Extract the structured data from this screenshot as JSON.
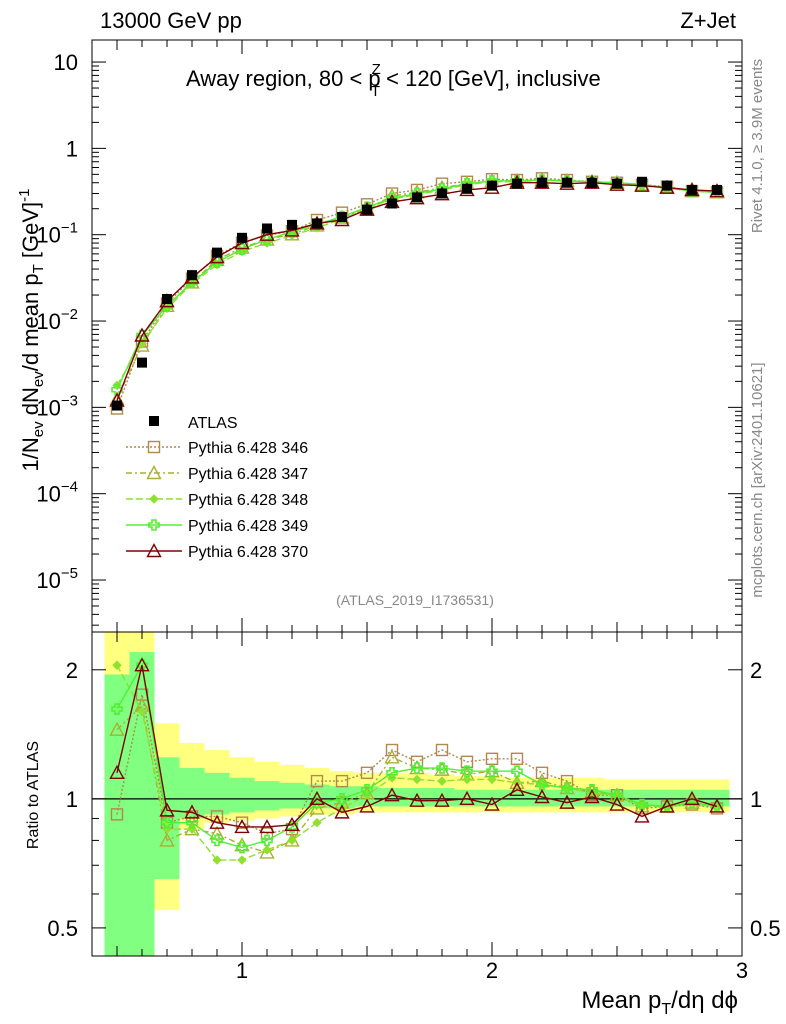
{
  "header": {
    "left": "13000 GeV pp",
    "right": "Z+Jet"
  },
  "side": {
    "rivet": "Rivet 4.1.0, ≥ 3.9M events",
    "mcplots": "mcplots.cern.ch [arXiv:2401.10621]"
  },
  "colors": {
    "s346": "#b08850",
    "s347": "#a8b030",
    "s348": "#90e030",
    "s349": "#50f030",
    "s370": "#800000",
    "band_y": "#ffff80",
    "band_g": "#80ff80"
  },
  "chart_data": [
    {
      "type": "line",
      "title": "Away region, 80 < pT^Z < 120 [GeV], inclusive",
      "title_parts": {
        "a": "Away region, 80 < p",
        "sup": "Z",
        "sub": "T",
        "b": " < 120 [GeV], inclusive"
      },
      "ylabel": "1/N_ev dN_ev/d mean p_T [GeV]^-1",
      "ylabel_parts": {
        "a": "1/N",
        "ev1": "ev",
        "b": " dN",
        "ev2": "ev",
        "c": "/d mean p",
        "T": "T",
        "d": " [GeV]",
        "e": "-1"
      },
      "yscale": "log",
      "ylim": [
        2.5e-06,
        18
      ],
      "xlim": [
        0.4,
        3.0
      ],
      "yticks": [
        {
          "v": 10,
          "m": "10",
          "e": ""
        },
        {
          "v": 1,
          "m": "1",
          "e": ""
        },
        {
          "v": 0.1,
          "m": "10",
          "e": "−1"
        },
        {
          "v": 0.01,
          "m": "10",
          "e": "−2"
        },
        {
          "v": 0.001,
          "m": "10",
          "e": "−3"
        },
        {
          "v": 0.0001,
          "m": "10",
          "e": "−4"
        },
        {
          "v": 1e-05,
          "m": "10",
          "e": "−5"
        }
      ],
      "watermark": "(ATLAS_2019_I1736531)",
      "x": [
        0.5,
        0.6,
        0.7,
        0.8,
        0.9,
        1.0,
        1.1,
        1.2,
        1.3,
        1.4,
        1.5,
        1.6,
        1.7,
        1.8,
        1.9,
        2.0,
        2.1,
        2.2,
        2.3,
        2.4,
        2.5,
        2.6,
        2.7,
        2.8,
        2.9
      ],
      "atlas": [
        0.00105,
        0.0033,
        0.018,
        0.034,
        0.062,
        0.092,
        0.118,
        0.13,
        0.135,
        0.16,
        0.195,
        0.23,
        0.27,
        0.3,
        0.34,
        0.37,
        0.39,
        0.4,
        0.4,
        0.4,
        0.39,
        0.41,
        0.37,
        0.33,
        0.33
      ],
      "series": [
        {
          "name": "Pythia 6.428 346",
          "key": "s346",
          "marker": "square",
          "dash": "2,2",
          "values": [
            0.00097,
            0.0058,
            0.016,
            0.031,
            0.057,
            0.081,
            0.098,
            0.11,
            0.148,
            0.18,
            0.225,
            0.3,
            0.33,
            0.39,
            0.41,
            0.44,
            0.43,
            0.45,
            0.43,
            0.41,
            0.4,
            0.38,
            0.36,
            0.32,
            0.31
          ]
        },
        {
          "name": "Pythia 6.428 347",
          "key": "s347",
          "marker": "tri",
          "dash": "6,3,2,3",
          "values": [
            0.00125,
            0.0052,
            0.015,
            0.028,
            0.051,
            0.071,
            0.088,
            0.101,
            0.128,
            0.158,
            0.2,
            0.28,
            0.31,
            0.35,
            0.39,
            0.42,
            0.42,
            0.43,
            0.42,
            0.41,
            0.4,
            0.38,
            0.35,
            0.32,
            0.31
          ]
        },
        {
          "name": "Pythia 6.428 348",
          "key": "s348",
          "marker": "diamond",
          "dash": "7,3",
          "values": [
            0.0018,
            0.0055,
            0.014,
            0.027,
            0.045,
            0.064,
            0.08,
            0.098,
            0.12,
            0.152,
            0.2,
            0.26,
            0.29,
            0.33,
            0.38,
            0.41,
            0.41,
            0.43,
            0.42,
            0.41,
            0.4,
            0.37,
            0.35,
            0.32,
            0.31
          ]
        },
        {
          "name": "Pythia 6.428 349",
          "key": "s349",
          "marker": "cross",
          "dash": "",
          "values": [
            0.0016,
            0.0068,
            0.015,
            0.028,
            0.048,
            0.068,
            0.088,
            0.108,
            0.132,
            0.162,
            0.208,
            0.265,
            0.3,
            0.34,
            0.39,
            0.42,
            0.42,
            0.43,
            0.42,
            0.41,
            0.4,
            0.38,
            0.35,
            0.32,
            0.31
          ]
        },
        {
          "name": "Pythia 6.428 370",
          "key": "s370",
          "marker": "tri",
          "dash": "",
          "values": [
            0.0012,
            0.0068,
            0.017,
            0.032,
            0.055,
            0.08,
            0.1,
            0.112,
            0.135,
            0.148,
            0.195,
            0.24,
            0.265,
            0.295,
            0.33,
            0.35,
            0.4,
            0.4,
            0.39,
            0.4,
            0.38,
            0.37,
            0.35,
            0.33,
            0.32
          ]
        }
      ],
      "legend": {
        "position": "lower-left",
        "atlas_label": "ATLAS"
      }
    },
    {
      "type": "line",
      "title": "",
      "ylabel": "Ratio to ATLAS",
      "xlabel": "Mean pT/dη dϕ",
      "xlabel_parts": {
        "a": "Mean p",
        "T": "T",
        "b": "/dη dϕ"
      },
      "yscale": "log",
      "ylim": [
        0.43,
        2.45
      ],
      "xlim": [
        0.4,
        3.0
      ],
      "yticks": [
        {
          "v": 2,
          "label": "2"
        },
        {
          "v": 1,
          "label": "1"
        },
        {
          "v": 0.5,
          "label": "0.5"
        }
      ],
      "xticks": [
        {
          "v": 1,
          "label": "1"
        },
        {
          "v": 2,
          "label": "2"
        },
        {
          "v": 3,
          "label": "3"
        }
      ],
      "band_yellow": [
        [
          0.2,
          5
        ],
        [
          0.2,
          5
        ],
        [
          0.55,
          1.5
        ],
        [
          0.85,
          1.35
        ],
        [
          0.88,
          1.3
        ],
        [
          0.89,
          1.25
        ],
        [
          0.9,
          1.22
        ],
        [
          0.91,
          1.2
        ],
        [
          0.92,
          1.18
        ],
        [
          0.92,
          1.16
        ],
        [
          0.93,
          1.15
        ],
        [
          0.93,
          1.15
        ],
        [
          0.93,
          1.15
        ],
        [
          0.93,
          1.14
        ],
        [
          0.93,
          1.13
        ],
        [
          0.93,
          1.13
        ],
        [
          0.93,
          1.12
        ],
        [
          0.93,
          1.12
        ],
        [
          0.93,
          1.12
        ],
        [
          0.93,
          1.12
        ],
        [
          0.93,
          1.11
        ],
        [
          0.93,
          1.11
        ],
        [
          0.93,
          1.11
        ],
        [
          0.93,
          1.11
        ],
        [
          0.93,
          1.11
        ]
      ],
      "band_green": [
        [
          0.2,
          1.95
        ],
        [
          0.2,
          2.2
        ],
        [
          0.65,
          1.25
        ],
        [
          0.9,
          1.18
        ],
        [
          0.92,
          1.15
        ],
        [
          0.93,
          1.12
        ],
        [
          0.94,
          1.1
        ],
        [
          0.95,
          1.09
        ],
        [
          0.95,
          1.08
        ],
        [
          0.95,
          1.07
        ],
        [
          0.96,
          1.07
        ],
        [
          0.96,
          1.06
        ],
        [
          0.96,
          1.06
        ],
        [
          0.96,
          1.06
        ],
        [
          0.96,
          1.05
        ],
        [
          0.96,
          1.05
        ],
        [
          0.96,
          1.05
        ],
        [
          0.96,
          1.05
        ],
        [
          0.96,
          1.05
        ],
        [
          0.96,
          1.05
        ],
        [
          0.96,
          1.05
        ],
        [
          0.96,
          1.05
        ],
        [
          0.96,
          1.05
        ],
        [
          0.96,
          1.05
        ],
        [
          0.96,
          1.05
        ]
      ],
      "series": [
        {
          "key": "s346",
          "marker": "square",
          "dash": "2,2",
          "values": [
            0.92,
            1.75,
            0.88,
            0.91,
            0.91,
            0.88,
            0.83,
            0.85,
            1.1,
            1.1,
            1.15,
            1.3,
            1.22,
            1.3,
            1.22,
            1.24,
            1.24,
            1.15,
            1.1,
            1.02,
            1.02,
            0.95,
            0.96,
            0.97,
            0.95
          ]
        },
        {
          "key": "s347",
          "marker": "tri",
          "dash": "6,3,2,3",
          "values": [
            1.45,
            1.65,
            0.8,
            0.85,
            0.83,
            0.78,
            0.75,
            0.8,
            0.95,
            0.98,
            1.03,
            1.25,
            1.18,
            1.17,
            1.14,
            1.16,
            1.09,
            1.1,
            1.06,
            1.04,
            1.02,
            0.96,
            0.96,
            0.98,
            0.96
          ]
        },
        {
          "key": "s348",
          "marker": "diamond",
          "dash": "7,3",
          "values": [
            2.05,
            1.6,
            0.85,
            0.85,
            0.72,
            0.72,
            0.76,
            0.8,
            0.88,
            0.95,
            1.02,
            1.12,
            1.11,
            1.1,
            1.11,
            1.11,
            1.09,
            1.08,
            1.06,
            1.03,
            1.02,
            0.96,
            0.96,
            0.98,
            0.96
          ]
        },
        {
          "key": "s349",
          "marker": "cross",
          "dash": "",
          "values": [
            1.62,
            2.05,
            0.88,
            0.88,
            0.8,
            0.77,
            0.8,
            0.86,
            0.98,
            1.0,
            1.05,
            1.15,
            1.18,
            1.18,
            1.16,
            1.16,
            1.16,
            1.08,
            1.06,
            1.05,
            1.02,
            0.97,
            0.96,
            0.98,
            0.96
          ]
        },
        {
          "key": "s370",
          "marker": "tri",
          "dash": "",
          "values": [
            1.15,
            2.05,
            0.94,
            0.93,
            0.88,
            0.86,
            0.86,
            0.87,
            1.0,
            0.93,
            0.96,
            1.02,
            0.99,
            0.99,
            1.0,
            0.97,
            1.05,
            1.01,
            0.98,
            1.01,
            0.97,
            0.91,
            0.96,
            1.0,
            0.96
          ]
        }
      ]
    }
  ]
}
